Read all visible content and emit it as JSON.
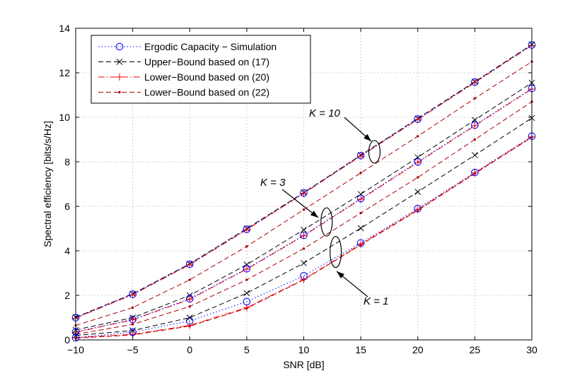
{
  "chart_data": {
    "type": "line",
    "xlabel": "SNR [dB]",
    "ylabel": "Spectral efficiency [bits/s/Hz]",
    "xlim": [
      -10,
      30
    ],
    "ylim": [
      0,
      14
    ],
    "xticks": [
      -10,
      -5,
      0,
      5,
      10,
      15,
      20,
      25,
      30
    ],
    "yticks": [
      0,
      2,
      4,
      6,
      8,
      10,
      12,
      14
    ],
    "grid": true,
    "legend_position": "top-left",
    "x": [
      -10,
      -5,
      0,
      5,
      10,
      15,
      20,
      25,
      30
    ],
    "series": [
      {
        "name": "Ergodic Capacity − Simulation",
        "K": 10,
        "style": "sim",
        "values": [
          1.0,
          2.05,
          3.4,
          4.97,
          6.6,
          8.28,
          9.92,
          11.58,
          13.25
        ]
      },
      {
        "name": "Upper−Bound based on (17)",
        "K": 10,
        "style": "upper",
        "values": [
          1.02,
          2.07,
          3.42,
          5.0,
          6.62,
          8.3,
          9.95,
          11.6,
          13.27
        ]
      },
      {
        "name": "Lower−Bound based on (20)",
        "K": 10,
        "style": "lower20",
        "values": [
          0.98,
          2.03,
          3.38,
          4.95,
          6.58,
          8.26,
          9.9,
          11.56,
          13.23
        ]
      },
      {
        "name": "Lower−Bound based on (22)",
        "K": 10,
        "style": "lower22",
        "values": [
          0.65,
          1.45,
          2.7,
          4.2,
          5.85,
          7.5,
          9.15,
          10.85,
          12.5
        ]
      },
      {
        "name": "Ergodic Capacity − Simulation",
        "K": 3,
        "style": "sim",
        "values": [
          0.36,
          0.92,
          1.85,
          3.2,
          4.7,
          6.35,
          8.0,
          9.65,
          11.3
        ]
      },
      {
        "name": "Upper−Bound based on (17)",
        "K": 3,
        "style": "upper",
        "values": [
          0.45,
          1.0,
          2.0,
          3.38,
          4.95,
          6.55,
          8.2,
          9.88,
          11.55
        ]
      },
      {
        "name": "Lower−Bound based on (20)",
        "K": 3,
        "style": "lower20",
        "values": [
          0.34,
          0.9,
          1.82,
          3.18,
          4.68,
          6.32,
          7.97,
          9.62,
          11.27
        ]
      },
      {
        "name": "Lower−Bound based on (22)",
        "K": 3,
        "style": "lower22",
        "values": [
          0.25,
          0.7,
          1.5,
          2.7,
          4.1,
          5.7,
          7.3,
          9.0,
          10.7
        ]
      },
      {
        "name": "Ergodic Capacity − Simulation",
        "K": 1,
        "style": "sim",
        "values": [
          0.1,
          0.35,
          0.85,
          1.72,
          2.88,
          4.35,
          5.9,
          7.52,
          9.15
        ]
      },
      {
        "name": "Upper−Bound based on (17)",
        "K": 1,
        "style": "upper",
        "values": [
          0.2,
          0.42,
          1.0,
          2.1,
          3.45,
          5.02,
          6.65,
          8.3,
          9.97
        ]
      },
      {
        "name": "Lower−Bound based on (20)",
        "K": 1,
        "style": "lower20",
        "values": [
          0.1,
          0.25,
          0.65,
          1.45,
          2.72,
          4.3,
          5.85,
          7.5,
          9.12
        ]
      },
      {
        "name": "Lower−Bound based on (22)",
        "K": 1,
        "style": "lower22",
        "values": [
          0.08,
          0.22,
          0.62,
          1.42,
          2.7,
          4.27,
          5.82,
          7.47,
          9.1
        ]
      }
    ],
    "legend": [
      {
        "label": "Ergodic Capacity − Simulation",
        "style": "sim"
      },
      {
        "label": "Upper−Bound based on (17)",
        "style": "upper"
      },
      {
        "label": "Lower−Bound based on (20)",
        "style": "lower20"
      },
      {
        "label": "Lower−Bound based on (22)",
        "style": "lower22"
      }
    ],
    "annotations": [
      {
        "text": "K = 10",
        "at_x": 16.2,
        "at_y": 8.45
      },
      {
        "text": "K = 3",
        "at_x": 12.0,
        "at_y": 5.3
      },
      {
        "text": "K = 1",
        "at_x": 12.8,
        "at_y": 3.95
      }
    ],
    "colors": {
      "sim": "#0000ff",
      "upper": "#000000",
      "lower20": "#ff0000",
      "lower22": "#aa0000",
      "grid": "#b0b0b0"
    }
  }
}
